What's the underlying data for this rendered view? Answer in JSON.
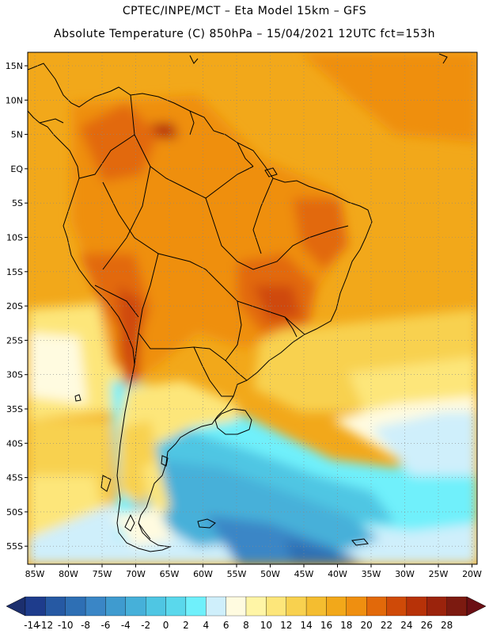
{
  "header": {
    "line1": "CPTEC/INPE/MCT –  Eta Model 15km – GFS",
    "line2": "Absolute Temperature (C) 850hPa – 15/04/2021 12UTC fct=153h"
  },
  "map": {
    "region": "South America",
    "lat_labels": [
      "15N",
      "10N",
      "5N",
      "EQ",
      "5S",
      "10S",
      "15S",
      "20S",
      "25S",
      "30S",
      "35S",
      "40S",
      "45S",
      "50S",
      "55S"
    ],
    "lon_labels": [
      "85W",
      "80W",
      "75W",
      "70W",
      "65W",
      "60W",
      "55W",
      "50W",
      "45W",
      "40W",
      "35W",
      "30W",
      "25W",
      "20W"
    ],
    "gridlines": "dotted"
  },
  "colorbar": {
    "labels": [
      "-14",
      "-12",
      "-10",
      "-8",
      "-6",
      "-4",
      "-2",
      "0",
      "2",
      "4",
      "6",
      "8",
      "10",
      "12",
      "14",
      "16",
      "18",
      "20",
      "22",
      "24",
      "26",
      "28"
    ],
    "colors": [
      "#1e3c8c",
      "#2659a3",
      "#2e6fb4",
      "#3a86c6",
      "#3f9bcf",
      "#46b0d9",
      "#4fc6e3",
      "#5ad8ec",
      "#6ff0fb",
      "#cfeffb",
      "#fffbe0",
      "#fff5a6",
      "#fde67a",
      "#f8d14f",
      "#f4bd30",
      "#f2a81a",
      "#ef8f10",
      "#e2690a",
      "#cf4a08",
      "#b73208",
      "#9b230c",
      "#7c1a10"
    ],
    "left_arrow_color": "#1c2f6e",
    "right_arrow_color": "#6b0f14"
  }
}
